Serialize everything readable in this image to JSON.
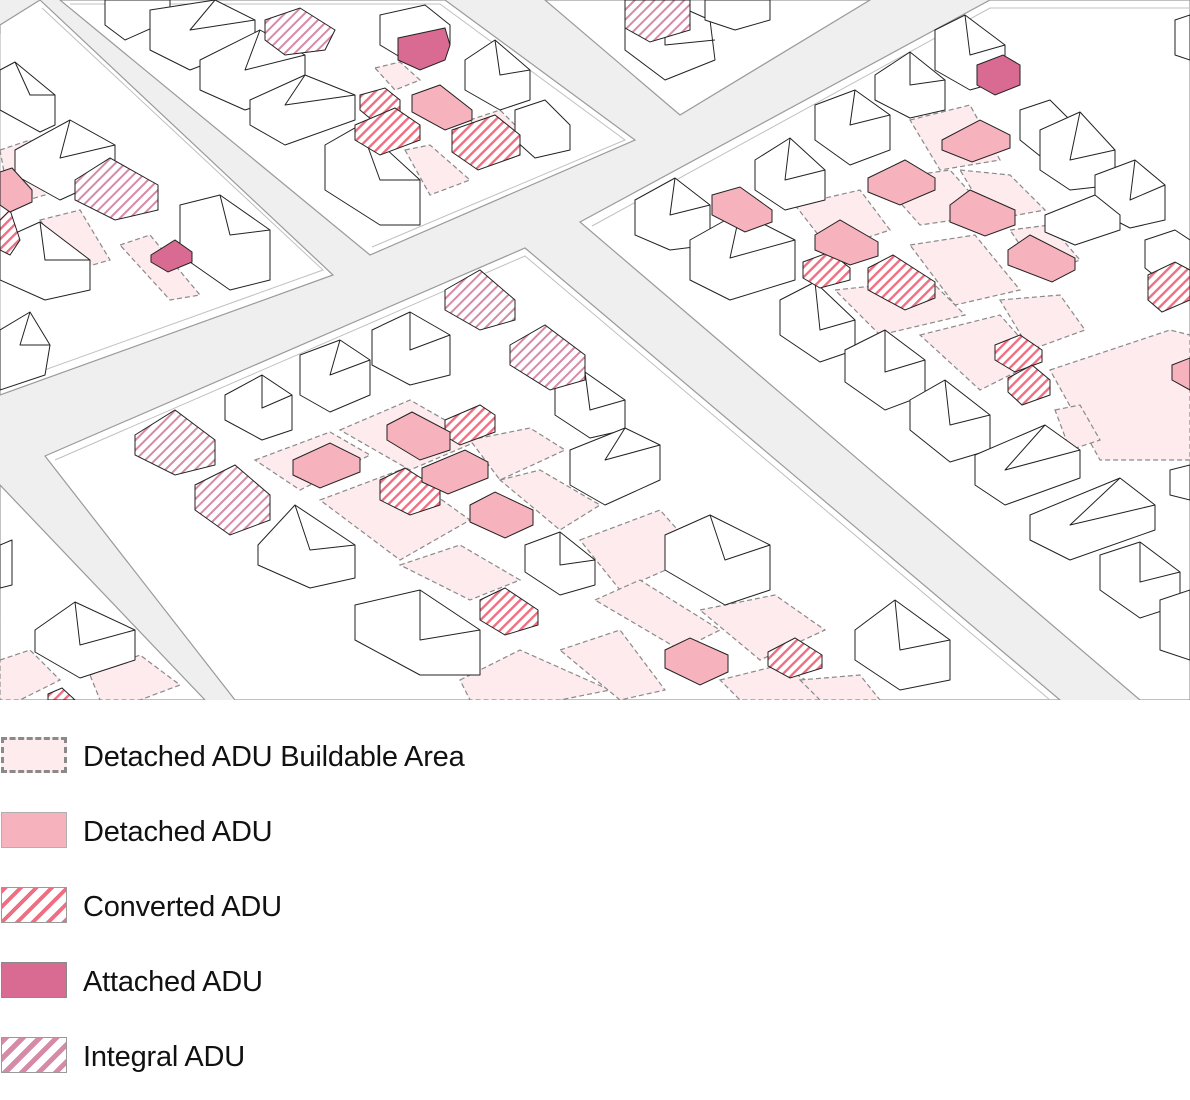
{
  "colors": {
    "street": "#efefef",
    "lot": "#ffffff",
    "outline": "#222222",
    "buildable_fill": "#fdebee",
    "buildable_border": "#8a8a8a",
    "detached": "#f6b3bd",
    "converted": "#ef6f82",
    "attached": "#d96b92",
    "integral": "#d58aa6"
  },
  "legend": {
    "items": [
      {
        "key": "buildable",
        "label": "Detached ADU Buildable Area",
        "icon": "dashed-outline-swatch"
      },
      {
        "key": "detached",
        "label": "Detached ADU",
        "icon": "solid-pink-swatch"
      },
      {
        "key": "converted",
        "label": "Converted ADU",
        "icon": "red-hatched-swatch"
      },
      {
        "key": "attached",
        "label": "Attached ADU",
        "icon": "dark-pink-swatch"
      },
      {
        "key": "integral",
        "label": "Integral ADU",
        "icon": "mauve-hatched-swatch"
      }
    ]
  }
}
